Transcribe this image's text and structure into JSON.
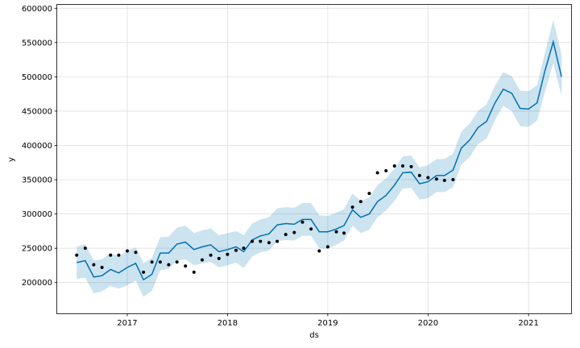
{
  "chart_data": {
    "type": "line",
    "title": "",
    "xlabel": "ds",
    "ylabel": "y",
    "xlim": [
      "2016-04-21",
      "2021-06-05"
    ],
    "ylim": [
      155000,
      605000
    ],
    "x_ticks": [
      {
        "date": "2017-01-01",
        "label": "2017"
      },
      {
        "date": "2018-01-01",
        "label": "2018"
      },
      {
        "date": "2019-01-01",
        "label": "2019"
      },
      {
        "date": "2020-01-01",
        "label": "2020"
      },
      {
        "date": "2021-01-01",
        "label": "2021"
      }
    ],
    "y_ticks": [
      {
        "value": 200000,
        "label": "200000"
      },
      {
        "value": 250000,
        "label": "250000"
      },
      {
        "value": 300000,
        "label": "300000"
      },
      {
        "value": 350000,
        "label": "350000"
      },
      {
        "value": 400000,
        "label": "400000"
      },
      {
        "value": 450000,
        "label": "450000"
      },
      {
        "value": 500000,
        "label": "500000"
      },
      {
        "value": 550000,
        "label": "550000"
      },
      {
        "value": 600000,
        "label": "600000"
      }
    ],
    "grid": true,
    "colors": {
      "forecast": "#0072B2",
      "interval": "#0072B2",
      "observed": "#000000",
      "grid": "#dddddd"
    },
    "series": [
      {
        "kind": "forecast",
        "x": [
          "2016-07-01",
          "2016-08-01",
          "2016-09-01",
          "2016-10-01",
          "2016-11-01",
          "2016-12-01",
          "2017-01-01",
          "2017-02-01",
          "2017-03-01",
          "2017-04-01",
          "2017-05-01",
          "2017-06-01",
          "2017-07-01",
          "2017-08-01",
          "2017-09-01",
          "2017-10-01",
          "2017-11-01",
          "2017-12-01",
          "2018-01-01",
          "2018-02-01",
          "2018-03-01",
          "2018-04-01",
          "2018-05-01",
          "2018-06-01",
          "2018-07-01",
          "2018-08-01",
          "2018-09-01",
          "2018-10-01",
          "2018-11-01",
          "2018-12-01",
          "2019-01-01",
          "2019-02-01",
          "2019-03-01",
          "2019-04-01",
          "2019-05-01",
          "2019-06-01",
          "2019-07-01",
          "2019-08-01",
          "2019-09-01",
          "2019-10-01",
          "2019-11-01",
          "2019-12-01",
          "2020-01-01",
          "2020-02-01",
          "2020-03-01",
          "2020-04-01",
          "2020-05-01",
          "2020-06-01",
          "2020-07-01",
          "2020-08-01",
          "2020-09-01",
          "2020-10-01",
          "2020-11-01",
          "2020-12-01",
          "2021-01-01",
          "2021-02-01",
          "2021-03-01",
          "2021-04-01",
          "2021-05-01"
        ],
        "y": [
          229000,
          232000,
          208000,
          210000,
          219000,
          214000,
          222000,
          228000,
          204000,
          212000,
          243000,
          243000,
          256000,
          259000,
          248000,
          252000,
          255000,
          245000,
          248000,
          252000,
          245000,
          262000,
          268000,
          271000,
          284000,
          286000,
          285000,
          292000,
          292000,
          274000,
          274000,
          278000,
          283000,
          306000,
          295000,
          300000,
          318000,
          327000,
          342000,
          360000,
          361000,
          344000,
          347000,
          356000,
          356000,
          364000,
          396000,
          408000,
          426000,
          435000,
          462000,
          482000,
          476000,
          454000,
          453000,
          462000,
          508000,
          551000,
          500000
        ],
        "lower": [
          205000,
          207000,
          184000,
          187000,
          195000,
          191000,
          196000,
          203000,
          179000,
          188000,
          218000,
          220000,
          232000,
          234000,
          225000,
          228000,
          230000,
          222000,
          225000,
          229000,
          221000,
          238000,
          244000,
          247000,
          260000,
          262000,
          261000,
          268000,
          268000,
          250000,
          249000,
          255000,
          261000,
          283000,
          272000,
          277000,
          295000,
          305000,
          319000,
          337000,
          338000,
          321000,
          323000,
          332000,
          332000,
          339000,
          372000,
          383000,
          402000,
          410000,
          437000,
          458000,
          450000,
          428000,
          427000,
          436000,
          477000,
          520000,
          472000
        ],
        "upper": [
          252000,
          256000,
          232000,
          234000,
          243000,
          238000,
          246000,
          251000,
          228000,
          236000,
          266000,
          267000,
          280000,
          283000,
          272000,
          276000,
          279000,
          269000,
          272000,
          275000,
          269000,
          286000,
          292000,
          295000,
          308000,
          310000,
          309000,
          316000,
          316000,
          298000,
          297000,
          302000,
          307000,
          330000,
          319000,
          324000,
          342000,
          352000,
          366000,
          384000,
          385000,
          368000,
          371000,
          380000,
          380000,
          388000,
          420000,
          432000,
          450000,
          460000,
          487000,
          507000,
          501000,
          480000,
          479000,
          488000,
          534000,
          583000,
          532000
        ]
      },
      {
        "kind": "observed",
        "x": [
          "2016-07-01",
          "2016-08-01",
          "2016-09-01",
          "2016-10-01",
          "2016-11-01",
          "2016-12-01",
          "2017-01-01",
          "2017-02-01",
          "2017-03-01",
          "2017-04-01",
          "2017-05-01",
          "2017-06-01",
          "2017-07-01",
          "2017-08-01",
          "2017-09-01",
          "2017-10-01",
          "2017-11-01",
          "2017-12-01",
          "2018-01-01",
          "2018-02-01",
          "2018-03-01",
          "2018-04-01",
          "2018-05-01",
          "2018-06-01",
          "2018-07-01",
          "2018-08-01",
          "2018-09-01",
          "2018-10-01",
          "2018-11-01",
          "2018-12-01",
          "2019-01-01",
          "2019-02-01",
          "2019-03-01",
          "2019-04-01",
          "2019-05-01",
          "2019-06-01",
          "2019-07-01",
          "2019-08-01",
          "2019-09-01",
          "2019-10-01",
          "2019-11-01",
          "2019-12-01",
          "2020-01-01",
          "2020-02-01",
          "2020-03-01",
          "2020-04-01"
        ],
        "y": [
          240000,
          250000,
          226000,
          222000,
          240000,
          240000,
          246000,
          244000,
          215000,
          230000,
          230000,
          226000,
          230000,
          224000,
          215000,
          233000,
          240000,
          235000,
          241000,
          247000,
          250000,
          260000,
          260000,
          258000,
          260000,
          270000,
          273000,
          288000,
          278000,
          246000,
          252000,
          274000,
          272000,
          310000,
          318000,
          330000,
          360000,
          363000,
          370000,
          370000,
          369000,
          356000,
          353000,
          351000,
          349000,
          350000
        ]
      }
    ]
  }
}
